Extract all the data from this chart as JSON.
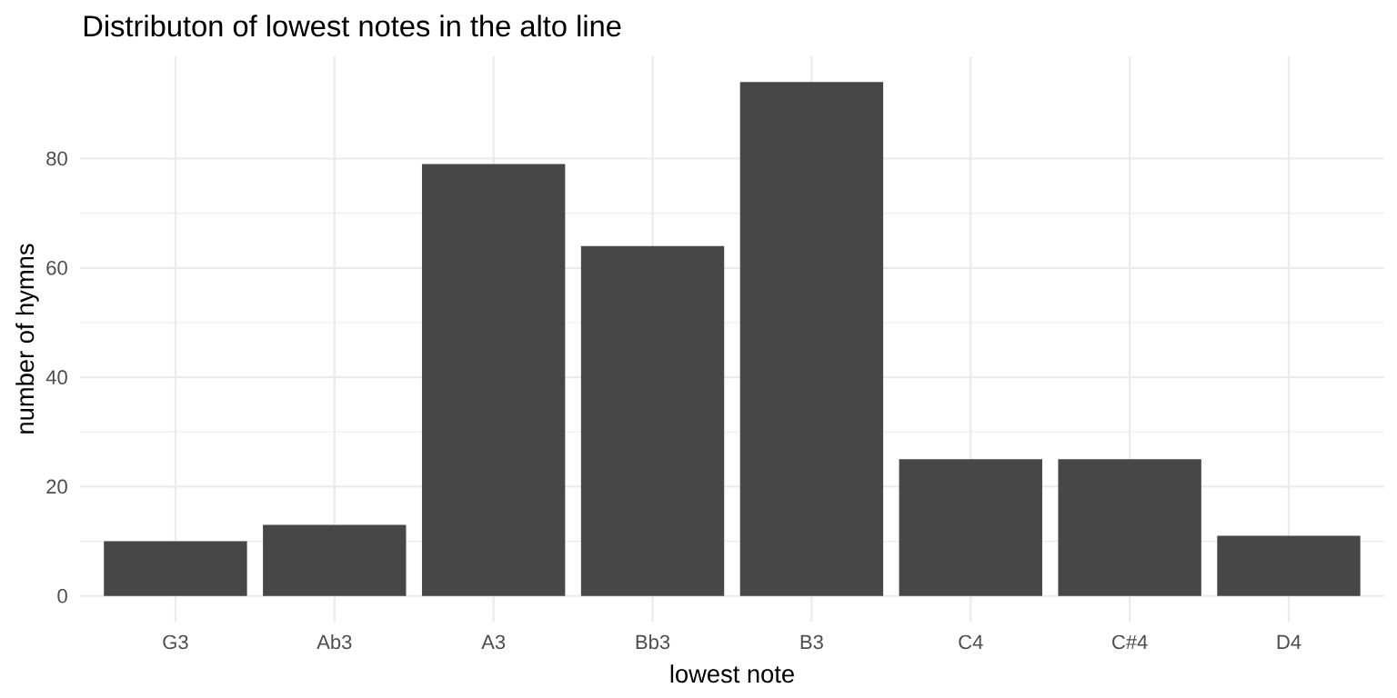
{
  "chart_data": {
    "type": "bar",
    "title": "Distributon of lowest notes in the alto line",
    "xlabel": "lowest note",
    "ylabel": "number of hymns",
    "categories": [
      "G3",
      "Ab3",
      "A3",
      "Bb3",
      "B3",
      "C4",
      "C#4",
      "D4"
    ],
    "values": [
      10,
      13,
      79,
      64,
      94,
      25,
      25,
      11
    ],
    "color": "#474747",
    "ylim": [
      -4.7,
      98.7
    ],
    "yticks": [
      0,
      20,
      40,
      60,
      80
    ],
    "grid": true
  }
}
